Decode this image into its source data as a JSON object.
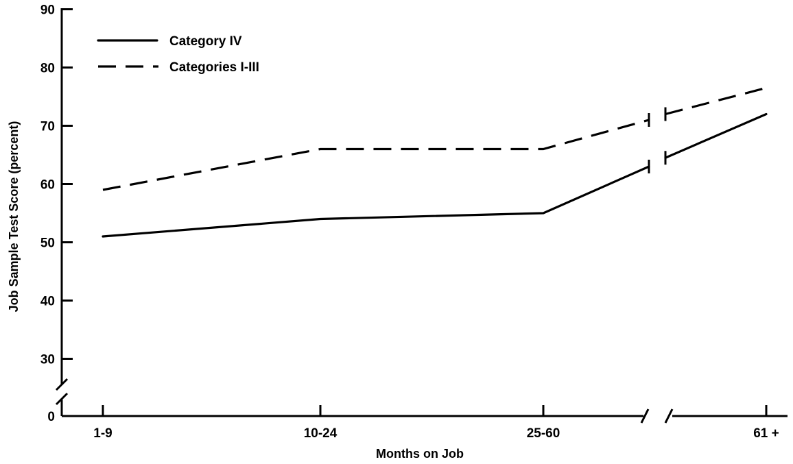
{
  "chart_data": {
    "type": "line",
    "title": "",
    "xlabel": "Months on Job",
    "ylabel": "Job Sample Test Score (percent)",
    "categories": [
      "1-9",
      "10-24",
      "25-60",
      "61 +"
    ],
    "y_ticks": [
      0,
      30,
      40,
      50,
      60,
      70,
      80,
      90
    ],
    "ylim": [
      0,
      90
    ],
    "y_axis_break": "between 0 and 30",
    "x_axis_break": "between 25-60 and 61 +",
    "legend_position": "top-left",
    "grid": false,
    "series": [
      {
        "name": "Category IV",
        "style": "solid",
        "values": [
          51,
          54,
          55,
          72
        ],
        "segment_end_before_break": 63,
        "segment_start_after_break": 64.5
      },
      {
        "name": "Categories I-III",
        "style": "dashed",
        "values": [
          59,
          66,
          66,
          76.5
        ],
        "segment_end_before_break": 71,
        "segment_start_after_break": 72
      }
    ]
  }
}
